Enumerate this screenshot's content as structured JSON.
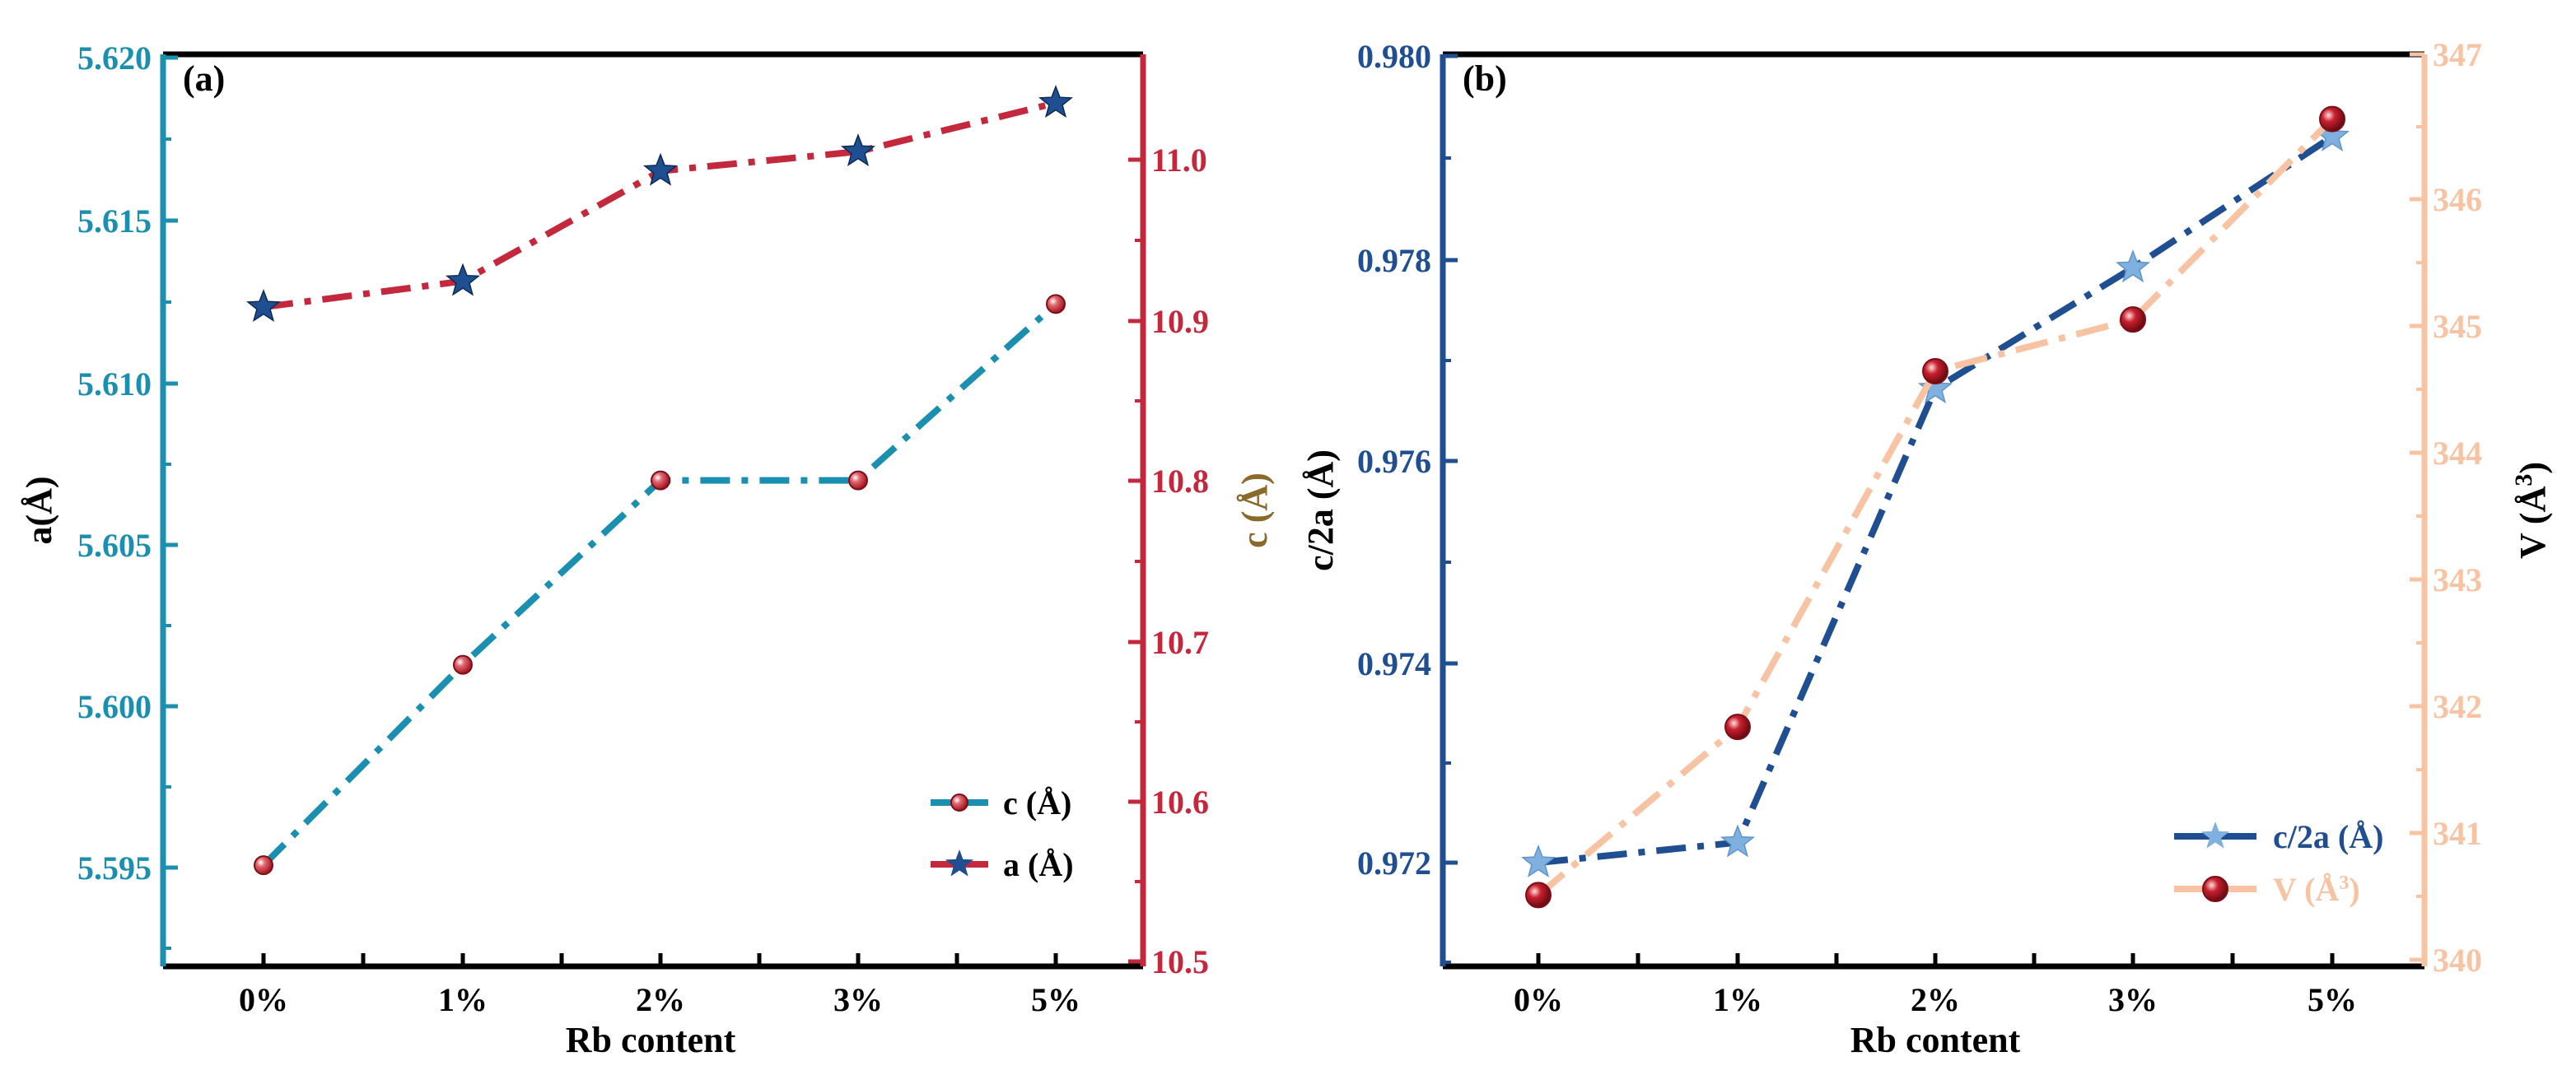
{
  "chart_data": [
    {
      "type": "line",
      "panel_label": "(a)",
      "categories": [
        "0%",
        "1%",
        "2%",
        "3%",
        "5%"
      ],
      "xlabel": "Rb content",
      "ylabel_left": "a(Å)",
      "ylabel_right": "c (Å)",
      "ylim_left": [
        5.592,
        5.62
      ],
      "ylim_right": [
        10.5,
        11.0
      ],
      "yticks_left": [
        "5.595",
        "5.600",
        "5.605",
        "5.610",
        "5.615",
        "5.620"
      ],
      "yticks_right": [
        "10.5",
        "10.6",
        "10.7",
        "10.8",
        "10.9",
        "11.0"
      ],
      "series": [
        {
          "name": "c (Å)",
          "axis": "right",
          "values": [
            10.56,
            10.685,
            10.8,
            10.8,
            10.91
          ],
          "color": "#1a8fb0",
          "marker": "ball"
        },
        {
          "name": "a (Å)",
          "axis": "left",
          "values": [
            5.6123,
            5.6131,
            5.6165,
            5.6171,
            5.6186
          ],
          "color": "#c4283c",
          "marker": "star"
        }
      ],
      "legend_position": "bottom-right",
      "colors": {
        "left_axis": "#1a8fb0",
        "right_axis": "#c4283c",
        "ylabel_right": "#8a6a2a"
      }
    },
    {
      "type": "line",
      "panel_label": "(b)",
      "categories": [
        "0%",
        "1%",
        "2%",
        "3%",
        "5%"
      ],
      "xlabel": "Rb content",
      "ylabel_left": "c/2a (Å)",
      "ylabel_right": "V (Å",
      "ylabel_right_sup": "3",
      "ylim_left": [
        0.971,
        0.98
      ],
      "ylim_right": [
        340,
        347
      ],
      "yticks_left": [
        "0.972",
        "0.974",
        "0.976",
        "0.978",
        "0.980"
      ],
      "yticks_right": [
        "340",
        "341",
        "342",
        "343",
        "344",
        "345",
        "346",
        "347"
      ],
      "series": [
        {
          "name": "c/2a (Å)",
          "axis": "left",
          "values": [
            0.972,
            0.9722,
            0.9767,
            0.9779,
            0.9792
          ],
          "color": "#1f4e91",
          "marker": "star"
        },
        {
          "name": "V (Å",
          "name_sup": "3",
          "axis": "right",
          "values": [
            340.5,
            341.8,
            344.55,
            344.95,
            346.5
          ],
          "color": "#f7c3a3",
          "marker": "ball"
        }
      ],
      "legend_position": "bottom-right",
      "colors": {
        "left_axis": "#1f4e91",
        "right_axis": "#f7c3a3"
      }
    }
  ]
}
